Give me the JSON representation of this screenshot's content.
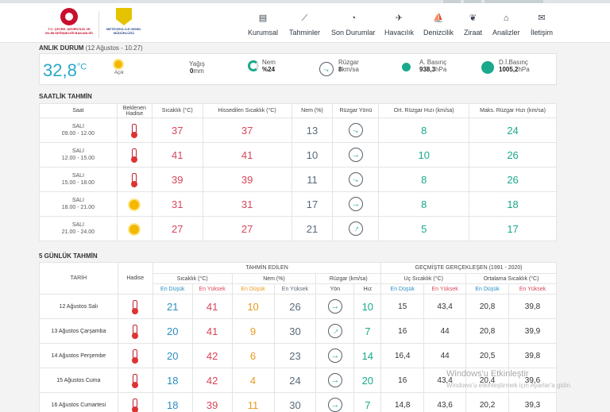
{
  "logos": {
    "ministry": "T.C. ÇEVRE, ŞEHİRCİLİK VE İKLİM DEĞİŞİKLİĞİ BAKANLIĞI",
    "mgm": "METEOROLOJİ GENEL MÜDÜRLÜĞÜ"
  },
  "nav": [
    {
      "label": "Kurumsal",
      "icon": "document-icon",
      "glyph": "▤"
    },
    {
      "label": "Tahminler",
      "icon": "chart-icon",
      "glyph": "⟋"
    },
    {
      "label": "Son Durumlar",
      "icon": "clock-icon",
      "glyph": "◔"
    },
    {
      "label": "Havacılık",
      "icon": "plane-icon",
      "glyph": "✈"
    },
    {
      "label": "Denizcilik",
      "icon": "sailboat-icon",
      "glyph": "⛵"
    },
    {
      "label": "Ziraat",
      "icon": "leaf-icon",
      "glyph": "❦"
    },
    {
      "label": "Analizler",
      "icon": "analysis-icon",
      "glyph": "⌂"
    },
    {
      "label": "İletişim",
      "icon": "mail-icon",
      "glyph": "✉"
    }
  ],
  "now": {
    "title": "ANLIK DURUM",
    "subtitle": "(12 Ağustos - 10.27)",
    "temp": "32,8",
    "unit": "°C",
    "sky": "Açık",
    "rain_label": "Yağış",
    "rain_value": "0",
    "rain_unit": "mm",
    "hum_label": "Nem",
    "hum_value": "%24",
    "wind_label": "Rüzgar",
    "wind_value": "8",
    "wind_unit": "km/sa",
    "apress_label": "A. Basınç",
    "apress_value": "938,3",
    "apress_unit": "hPa",
    "dlpress_label": "D.İ.Basınç",
    "dlpress_value": "1005,2",
    "dlpress_unit": "hPa"
  },
  "hourly": {
    "title": "SAATLİK TAHMİN",
    "headers": [
      "Saat",
      "Beklenen Hadise",
      "Sıcaklık (°C)",
      "Hissedilen Sıcaklık (°C)",
      "Nem (%)",
      "Rüzgar Yönü",
      "Ort. Rüzgar Hızı (km/sa)",
      "Maks. Rüzgar Hızı (km/sa)"
    ],
    "rows": [
      {
        "day": "SALI",
        "time": "09.00 - 12.00",
        "icon": "thermometer-icon",
        "temp": "37",
        "feel": "37",
        "hum": "13",
        "dir": "r20",
        "avg": "8",
        "max": "24"
      },
      {
        "day": "SALI",
        "time": "12.00 - 15.00",
        "icon": "thermometer-icon",
        "temp": "41",
        "feel": "41",
        "hum": "10",
        "dir": "r0",
        "avg": "10",
        "max": "26"
      },
      {
        "day": "SALI",
        "time": "15.00 - 18.00",
        "icon": "thermometer-icon",
        "temp": "39",
        "feel": "39",
        "hum": "11",
        "dir": "r20",
        "avg": "8",
        "max": "26"
      },
      {
        "day": "SALI",
        "time": "18.00 - 21.00",
        "icon": "sun-icon",
        "temp": "31",
        "feel": "31",
        "hum": "17",
        "dir": "r0",
        "avg": "8",
        "max": "18"
      },
      {
        "day": "SALI",
        "time": "21.00 - 24.00",
        "icon": "sun-icon",
        "temp": "27",
        "feel": "27",
        "hum": "21",
        "dir": "rn60",
        "avg": "5",
        "max": "17"
      }
    ]
  },
  "daily": {
    "title": "5 GÜNLÜK TAHMİN",
    "group_forecast": "TAHMİN EDİLEN",
    "group_past": "GEÇMİŞTE GERÇEKLEŞEN (1991 - 2020)",
    "h_date": "TARİH",
    "h_event": "Hadise",
    "h_temp": "Sıcaklık (°C)",
    "h_hum": "Nem (%)",
    "h_wind": "Rüzgar (km/sa)",
    "h_extreme": "Uç Sıcaklık (°C)",
    "h_mean": "Ortalama Sıcaklık (°C)",
    "low": "En Düşük",
    "high": "En Yüksek",
    "dir": "Yön",
    "speed": "Hız",
    "rows": [
      {
        "date": "12 Ağustos Salı",
        "tmin": "21",
        "tmax": "41",
        "hmin": "10",
        "hmax": "26",
        "dir": "r0",
        "wind": "10",
        "emin": "15",
        "emax": "43,4",
        "mmin": "20,8",
        "mmax": "39,8"
      },
      {
        "date": "13 Ağustos Çarşamba",
        "tmin": "20",
        "tmax": "41",
        "hmin": "9",
        "hmax": "30",
        "dir": "rn45",
        "wind": "7",
        "emin": "16",
        "emax": "44",
        "mmin": "20,8",
        "mmax": "39,9"
      },
      {
        "date": "14 Ağustos Perşembe",
        "tmin": "20",
        "tmax": "42",
        "hmin": "6",
        "hmax": "23",
        "dir": "r0",
        "wind": "14",
        "emin": "16,4",
        "emax": "44",
        "mmin": "20,5",
        "mmax": "39,8"
      },
      {
        "date": "15 Ağustos Cuma",
        "tmin": "18",
        "tmax": "42",
        "hmin": "4",
        "hmax": "24",
        "dir": "r0",
        "wind": "20",
        "emin": "16",
        "emax": "43,4",
        "mmin": "20,4",
        "mmax": "39,6"
      },
      {
        "date": "16 Ağustos Cumartesi",
        "tmin": "18",
        "tmax": "39",
        "hmin": "11",
        "hmax": "30",
        "dir": "r0",
        "wind": "7",
        "emin": "14,8",
        "emax": "43,6",
        "mmin": "20,2",
        "mmax": "39,3"
      }
    ]
  },
  "watermark": {
    "line1": "Windows'u Etkinleştir",
    "line2": "Windows'u etkinleştirmek için Ayarlar'a gidin."
  }
}
